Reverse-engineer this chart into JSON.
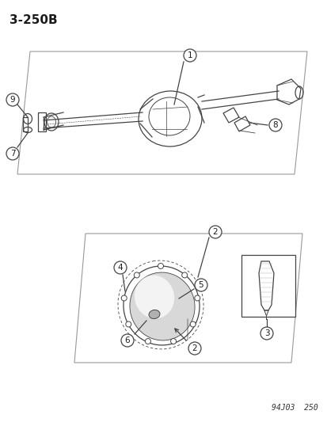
{
  "title": "3-250B",
  "footer": "94J03  250",
  "bg_color": "#ffffff",
  "text_color": "#1a1a1a",
  "diagram_color": "#444444",
  "label_font_size": 9,
  "title_font_size": 11
}
